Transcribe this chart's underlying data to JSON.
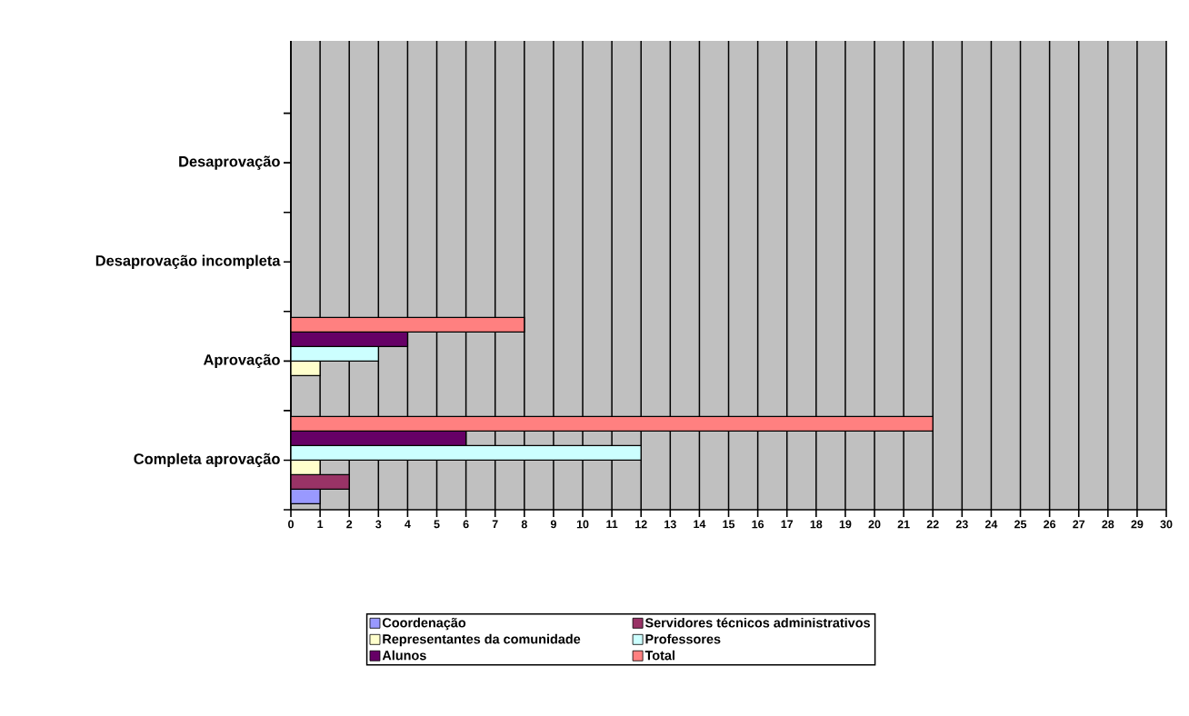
{
  "chart_data": {
    "type": "bar",
    "orientation": "horizontal",
    "categories": [
      "Desaprovação",
      "Desaprovação incompleta",
      "Aprovação",
      "Completa aprovação"
    ],
    "series": [
      {
        "name": "Coordenação",
        "color": "#9999ff",
        "values": [
          null,
          null,
          null,
          1
        ]
      },
      {
        "name": "Servidores técnicos administrativos",
        "color": "#993366",
        "values": [
          null,
          null,
          null,
          2
        ]
      },
      {
        "name": "Representantes da comunidade",
        "color": "#ffffcc",
        "values": [
          null,
          null,
          1,
          1
        ]
      },
      {
        "name": "Professores",
        "color": "#ccffff",
        "values": [
          null,
          null,
          3,
          12
        ]
      },
      {
        "name": "Alunos",
        "color": "#660066",
        "values": [
          null,
          null,
          4,
          6
        ]
      },
      {
        "name": "Total",
        "color": "#ff8080",
        "values": [
          null,
          null,
          8,
          22
        ]
      }
    ],
    "xlim": [
      0,
      30
    ],
    "xticks": [
      0,
      1,
      2,
      3,
      4,
      5,
      6,
      7,
      8,
      9,
      10,
      11,
      12,
      13,
      14,
      15,
      16,
      17,
      18,
      19,
      20,
      21,
      22,
      23,
      24,
      25,
      26,
      27,
      28,
      29,
      30
    ],
    "grid": "x",
    "legend": "bottom"
  }
}
